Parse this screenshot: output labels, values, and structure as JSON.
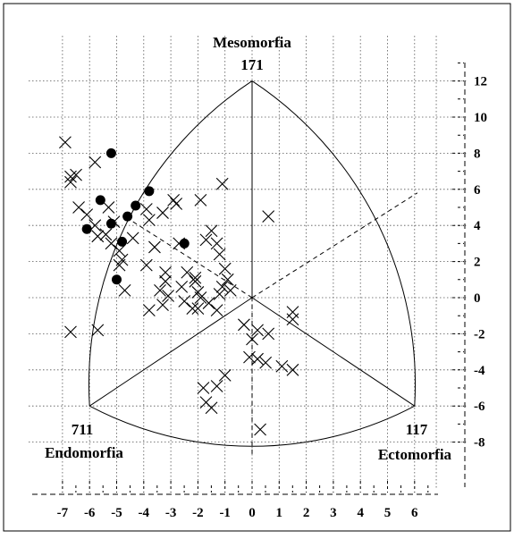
{
  "chart_data": {
    "type": "scatter",
    "title": "",
    "xlabel": "",
    "ylabel": "",
    "x_ticks": [
      "-7",
      "-6",
      "-5",
      "-4",
      "-3",
      "-2",
      "-1",
      "0",
      "1",
      "2",
      "3",
      "4",
      "5",
      "6"
    ],
    "y_ticks": [
      "12",
      "10",
      "8",
      "6",
      "4",
      "2",
      "0",
      "-2",
      "-4",
      "-6",
      "-8"
    ],
    "xlim": [
      -7.5,
      6.8
    ],
    "ylim": [
      -9.5,
      13.2
    ],
    "grid": true,
    "poles": {
      "meso": {
        "name": "Mesomorfia",
        "code": "171",
        "x": 0,
        "y": 12
      },
      "endo": {
        "name": "Endomorfia",
        "code": "711",
        "x": -6,
        "y": -6
      },
      "ecto": {
        "name": "Ectomorfia",
        "code": "117",
        "x": 6,
        "y": -6
      }
    },
    "series": [
      {
        "marker": "x",
        "points": [
          [
            -6.9,
            8.6
          ],
          [
            -5.8,
            7.5
          ],
          [
            -6.7,
            6.7
          ],
          [
            -6.7,
            6.4
          ],
          [
            -6.5,
            6.8
          ],
          [
            -6.4,
            5.0
          ],
          [
            -6.1,
            4.6
          ],
          [
            -5.8,
            4.0
          ],
          [
            -5.7,
            3.4
          ],
          [
            -5.3,
            5.0
          ],
          [
            -5.1,
            4.2
          ],
          [
            -5.4,
            3.5
          ],
          [
            -5.2,
            3.0
          ],
          [
            -4.9,
            2.6
          ],
          [
            -4.8,
            2.1
          ],
          [
            -4.4,
            3.3
          ],
          [
            -3.8,
            4.3
          ],
          [
            -3.9,
            4.9
          ],
          [
            -3.6,
            2.8
          ],
          [
            -2.9,
            5.4
          ],
          [
            -2.8,
            5.2
          ],
          [
            -3.3,
            4.7
          ],
          [
            -3.9,
            1.8
          ],
          [
            -4.9,
            1.8
          ],
          [
            -4.7,
            0.4
          ],
          [
            -2.7,
            3.0
          ],
          [
            -2.4,
            1.4
          ],
          [
            -2.1,
            1.1
          ],
          [
            -2.1,
            0.9
          ],
          [
            -1.9,
            5.4
          ],
          [
            -1.7,
            3.2
          ],
          [
            -1.5,
            3.7
          ],
          [
            -1.1,
            6.3
          ],
          [
            -1.3,
            3.0
          ],
          [
            -1.2,
            2.4
          ],
          [
            -1.0,
            1.6
          ],
          [
            -0.9,
            1.0
          ],
          [
            -1.1,
            0.6
          ],
          [
            -0.8,
            0.4
          ],
          [
            -1.2,
            0.2
          ],
          [
            -3.2,
            1.4
          ],
          [
            -3.2,
            0.9
          ],
          [
            -3.4,
            0.4
          ],
          [
            -3.1,
            0.1
          ],
          [
            -3.3,
            -0.4
          ],
          [
            -3.8,
            -0.7
          ],
          [
            -2.5,
            -0.2
          ],
          [
            -2.6,
            0.6
          ],
          [
            -2.0,
            0.3
          ],
          [
            -1.9,
            0.0
          ],
          [
            -2.2,
            -0.6
          ],
          [
            -2.0,
            -0.6
          ],
          [
            -1.3,
            -0.7
          ],
          [
            -1.6,
            -0.3
          ],
          [
            -0.3,
            -1.5
          ],
          [
            -6.7,
            -1.9
          ],
          [
            -5.7,
            -1.8
          ],
          [
            0.6,
            4.5
          ],
          [
            1.5,
            -0.8
          ],
          [
            1.5,
            -1.2
          ],
          [
            0.2,
            -1.8
          ],
          [
            0.6,
            -2.0
          ],
          [
            0.0,
            -2.3
          ],
          [
            -0.1,
            -3.3
          ],
          [
            0.2,
            -3.4
          ],
          [
            0.5,
            -3.6
          ],
          [
            1.1,
            -3.8
          ],
          [
            1.5,
            -4.0
          ],
          [
            -1.0,
            -4.3
          ],
          [
            -1.3,
            -4.9
          ],
          [
            -1.8,
            -5.0
          ],
          [
            -1.7,
            -5.8
          ],
          [
            -1.5,
            -6.1
          ],
          [
            0.3,
            -7.3
          ]
        ]
      },
      {
        "marker": "dot",
        "points": [
          [
            -5.2,
            8.0
          ],
          [
            -5.6,
            5.4
          ],
          [
            -6.1,
            3.8
          ],
          [
            -5.2,
            4.1
          ],
          [
            -4.8,
            3.1
          ],
          [
            -4.6,
            4.5
          ],
          [
            -4.3,
            5.1
          ],
          [
            -3.8,
            5.9
          ],
          [
            -2.5,
            3.0
          ],
          [
            -5.0,
            1.0
          ]
        ]
      }
    ]
  }
}
